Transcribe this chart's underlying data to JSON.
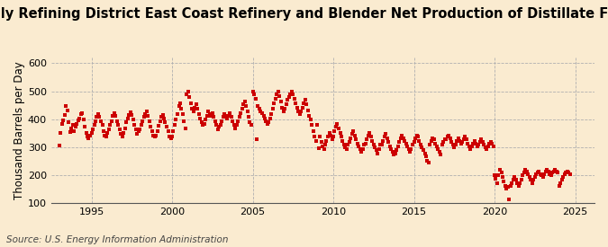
{
  "title": "Monthly Refining District East Coast Refinery and Blender Net Production of Distillate Fuel Oil",
  "ylabel": "Thousand Barrels per Day",
  "source": "Source: U.S. Energy Information Administration",
  "background_color": "#faebd0",
  "plot_bg_color": "#faebd0",
  "marker_color": "#cc0000",
  "xlim": [
    1992.5,
    2026.2
  ],
  "ylim": [
    100,
    620
  ],
  "yticks": [
    100,
    200,
    300,
    400,
    500,
    600
  ],
  "xticks": [
    1995,
    2000,
    2005,
    2010,
    2015,
    2020,
    2025
  ],
  "title_fontsize": 10.5,
  "ylabel_fontsize": 8.5,
  "source_fontsize": 7.5,
  "data": [
    [
      1993.0,
      305
    ],
    [
      1993.08,
      350
    ],
    [
      1993.17,
      382
    ],
    [
      1993.25,
      395
    ],
    [
      1993.33,
      415
    ],
    [
      1993.42,
      448
    ],
    [
      1993.5,
      432
    ],
    [
      1993.58,
      388
    ],
    [
      1993.67,
      355
    ],
    [
      1993.75,
      368
    ],
    [
      1993.83,
      378
    ],
    [
      1993.92,
      358
    ],
    [
      1994.0,
      372
    ],
    [
      1994.08,
      382
    ],
    [
      1994.17,
      396
    ],
    [
      1994.25,
      402
    ],
    [
      1994.33,
      418
    ],
    [
      1994.42,
      422
    ],
    [
      1994.5,
      398
    ],
    [
      1994.58,
      372
    ],
    [
      1994.67,
      352
    ],
    [
      1994.75,
      338
    ],
    [
      1994.83,
      332
    ],
    [
      1994.92,
      342
    ],
    [
      1995.0,
      352
    ],
    [
      1995.08,
      362
    ],
    [
      1995.17,
      378
    ],
    [
      1995.25,
      392
    ],
    [
      1995.33,
      408
    ],
    [
      1995.42,
      418
    ],
    [
      1995.5,
      408
    ],
    [
      1995.58,
      392
    ],
    [
      1995.67,
      378
    ],
    [
      1995.75,
      358
    ],
    [
      1995.83,
      342
    ],
    [
      1995.92,
      338
    ],
    [
      1996.0,
      352
    ],
    [
      1996.08,
      362
    ],
    [
      1996.17,
      378
    ],
    [
      1996.25,
      392
    ],
    [
      1996.33,
      412
    ],
    [
      1996.42,
      422
    ],
    [
      1996.5,
      412
    ],
    [
      1996.58,
      392
    ],
    [
      1996.67,
      378
    ],
    [
      1996.75,
      362
    ],
    [
      1996.83,
      348
    ],
    [
      1996.92,
      338
    ],
    [
      1997.0,
      352
    ],
    [
      1997.08,
      368
    ],
    [
      1997.17,
      388
    ],
    [
      1997.25,
      402
    ],
    [
      1997.33,
      415
    ],
    [
      1997.42,
      425
    ],
    [
      1997.5,
      415
    ],
    [
      1997.58,
      398
    ],
    [
      1997.67,
      378
    ],
    [
      1997.75,
      362
    ],
    [
      1997.83,
      348
    ],
    [
      1997.92,
      358
    ],
    [
      1998.0,
      362
    ],
    [
      1998.08,
      378
    ],
    [
      1998.17,
      392
    ],
    [
      1998.25,
      408
    ],
    [
      1998.33,
      418
    ],
    [
      1998.42,
      428
    ],
    [
      1998.5,
      412
    ],
    [
      1998.58,
      392
    ],
    [
      1998.67,
      372
    ],
    [
      1998.75,
      358
    ],
    [
      1998.83,
      342
    ],
    [
      1998.92,
      338
    ],
    [
      1999.0,
      342
    ],
    [
      1999.08,
      358
    ],
    [
      1999.17,
      375
    ],
    [
      1999.25,
      392
    ],
    [
      1999.33,
      408
    ],
    [
      1999.42,
      415
    ],
    [
      1999.5,
      402
    ],
    [
      1999.58,
      388
    ],
    [
      1999.67,
      372
    ],
    [
      1999.75,
      358
    ],
    [
      1999.83,
      338
    ],
    [
      1999.92,
      332
    ],
    [
      2000.0,
      338
    ],
    [
      2000.08,
      358
    ],
    [
      2000.17,
      378
    ],
    [
      2000.25,
      398
    ],
    [
      2000.33,
      418
    ],
    [
      2000.42,
      448
    ],
    [
      2000.5,
      458
    ],
    [
      2000.58,
      438
    ],
    [
      2000.67,
      418
    ],
    [
      2000.75,
      392
    ],
    [
      2000.83,
      368
    ],
    [
      2000.92,
      488
    ],
    [
      2001.0,
      498
    ],
    [
      2001.08,
      478
    ],
    [
      2001.17,
      458
    ],
    [
      2001.25,
      438
    ],
    [
      2001.33,
      428
    ],
    [
      2001.42,
      442
    ],
    [
      2001.5,
      452
    ],
    [
      2001.58,
      438
    ],
    [
      2001.67,
      418
    ],
    [
      2001.75,
      402
    ],
    [
      2001.83,
      388
    ],
    [
      2001.92,
      378
    ],
    [
      2002.0,
      382
    ],
    [
      2002.08,
      398
    ],
    [
      2002.17,
      412
    ],
    [
      2002.25,
      428
    ],
    [
      2002.33,
      418
    ],
    [
      2002.42,
      412
    ],
    [
      2002.5,
      422
    ],
    [
      2002.58,
      408
    ],
    [
      2002.67,
      392
    ],
    [
      2002.75,
      378
    ],
    [
      2002.83,
      362
    ],
    [
      2002.92,
      372
    ],
    [
      2003.0,
      378
    ],
    [
      2003.08,
      392
    ],
    [
      2003.17,
      408
    ],
    [
      2003.25,
      418
    ],
    [
      2003.33,
      412
    ],
    [
      2003.42,
      402
    ],
    [
      2003.5,
      412
    ],
    [
      2003.58,
      422
    ],
    [
      2003.67,
      408
    ],
    [
      2003.75,
      392
    ],
    [
      2003.83,
      378
    ],
    [
      2003.92,
      368
    ],
    [
      2004.0,
      378
    ],
    [
      2004.08,
      392
    ],
    [
      2004.17,
      408
    ],
    [
      2004.25,
      422
    ],
    [
      2004.33,
      438
    ],
    [
      2004.42,
      452
    ],
    [
      2004.5,
      462
    ],
    [
      2004.58,
      448
    ],
    [
      2004.67,
      428
    ],
    [
      2004.75,
      408
    ],
    [
      2004.83,
      388
    ],
    [
      2004.92,
      378
    ],
    [
      2005.0,
      498
    ],
    [
      2005.08,
      488
    ],
    [
      2005.17,
      472
    ],
    [
      2005.25,
      328
    ],
    [
      2005.33,
      448
    ],
    [
      2005.42,
      438
    ],
    [
      2005.5,
      428
    ],
    [
      2005.58,
      422
    ],
    [
      2005.67,
      412
    ],
    [
      2005.75,
      402
    ],
    [
      2005.83,
      392
    ],
    [
      2005.92,
      382
    ],
    [
      2006.0,
      388
    ],
    [
      2006.08,
      402
    ],
    [
      2006.17,
      418
    ],
    [
      2006.25,
      438
    ],
    [
      2006.33,
      458
    ],
    [
      2006.42,
      472
    ],
    [
      2006.5,
      488
    ],
    [
      2006.58,
      498
    ],
    [
      2006.67,
      482
    ],
    [
      2006.75,
      462
    ],
    [
      2006.83,
      442
    ],
    [
      2006.92,
      428
    ],
    [
      2007.0,
      438
    ],
    [
      2007.08,
      452
    ],
    [
      2007.17,
      468
    ],
    [
      2007.25,
      478
    ],
    [
      2007.33,
      488
    ],
    [
      2007.42,
      498
    ],
    [
      2007.5,
      488
    ],
    [
      2007.58,
      472
    ],
    [
      2007.67,
      458
    ],
    [
      2007.75,
      442
    ],
    [
      2007.83,
      428
    ],
    [
      2007.92,
      418
    ],
    [
      2008.0,
      428
    ],
    [
      2008.08,
      442
    ],
    [
      2008.17,
      458
    ],
    [
      2008.25,
      468
    ],
    [
      2008.33,
      452
    ],
    [
      2008.42,
      432
    ],
    [
      2008.5,
      412
    ],
    [
      2008.58,
      398
    ],
    [
      2008.67,
      378
    ],
    [
      2008.75,
      358
    ],
    [
      2008.83,
      338
    ],
    [
      2008.92,
      322
    ],
    [
      2009.0,
      378
    ],
    [
      2009.08,
      295
    ],
    [
      2009.17,
      338
    ],
    [
      2009.25,
      318
    ],
    [
      2009.33,
      302
    ],
    [
      2009.42,
      292
    ],
    [
      2009.5,
      308
    ],
    [
      2009.58,
      322
    ],
    [
      2009.67,
      338
    ],
    [
      2009.75,
      352
    ],
    [
      2009.83,
      342
    ],
    [
      2009.92,
      328
    ],
    [
      2010.0,
      338
    ],
    [
      2010.08,
      358
    ],
    [
      2010.17,
      372
    ],
    [
      2010.25,
      382
    ],
    [
      2010.33,
      368
    ],
    [
      2010.42,
      352
    ],
    [
      2010.5,
      338
    ],
    [
      2010.58,
      322
    ],
    [
      2010.67,
      308
    ],
    [
      2010.75,
      298
    ],
    [
      2010.83,
      292
    ],
    [
      2010.92,
      308
    ],
    [
      2011.0,
      318
    ],
    [
      2011.08,
      332
    ],
    [
      2011.17,
      348
    ],
    [
      2011.25,
      358
    ],
    [
      2011.33,
      342
    ],
    [
      2011.42,
      328
    ],
    [
      2011.5,
      312
    ],
    [
      2011.58,
      302
    ],
    [
      2011.67,
      292
    ],
    [
      2011.75,
      282
    ],
    [
      2011.83,
      292
    ],
    [
      2011.92,
      308
    ],
    [
      2012.0,
      312
    ],
    [
      2012.08,
      328
    ],
    [
      2012.17,
      342
    ],
    [
      2012.25,
      352
    ],
    [
      2012.33,
      338
    ],
    [
      2012.42,
      322
    ],
    [
      2012.5,
      308
    ],
    [
      2012.58,
      298
    ],
    [
      2012.67,
      288
    ],
    [
      2012.75,
      278
    ],
    [
      2012.83,
      292
    ],
    [
      2012.92,
      308
    ],
    [
      2013.0,
      308
    ],
    [
      2013.08,
      322
    ],
    [
      2013.17,
      338
    ],
    [
      2013.25,
      348
    ],
    [
      2013.33,
      332
    ],
    [
      2013.42,
      318
    ],
    [
      2013.5,
      302
    ],
    [
      2013.58,
      292
    ],
    [
      2013.67,
      282
    ],
    [
      2013.75,
      272
    ],
    [
      2013.83,
      278
    ],
    [
      2013.92,
      288
    ],
    [
      2014.0,
      302
    ],
    [
      2014.08,
      318
    ],
    [
      2014.17,
      332
    ],
    [
      2014.25,
      342
    ],
    [
      2014.33,
      332
    ],
    [
      2014.42,
      322
    ],
    [
      2014.5,
      312
    ],
    [
      2014.58,
      302
    ],
    [
      2014.67,
      292
    ],
    [
      2014.75,
      282
    ],
    [
      2014.83,
      292
    ],
    [
      2014.92,
      308
    ],
    [
      2015.0,
      318
    ],
    [
      2015.08,
      332
    ],
    [
      2015.17,
      342
    ],
    [
      2015.25,
      338
    ],
    [
      2015.33,
      322
    ],
    [
      2015.42,
      308
    ],
    [
      2015.5,
      298
    ],
    [
      2015.58,
      288
    ],
    [
      2015.67,
      278
    ],
    [
      2015.75,
      268
    ],
    [
      2015.83,
      252
    ],
    [
      2015.92,
      245
    ],
    [
      2016.0,
      308
    ],
    [
      2016.08,
      322
    ],
    [
      2016.17,
      332
    ],
    [
      2016.25,
      328
    ],
    [
      2016.33,
      312
    ],
    [
      2016.42,
      302
    ],
    [
      2016.5,
      292
    ],
    [
      2016.58,
      282
    ],
    [
      2016.67,
      272
    ],
    [
      2016.75,
      308
    ],
    [
      2016.83,
      318
    ],
    [
      2016.92,
      328
    ],
    [
      2017.0,
      328
    ],
    [
      2017.08,
      338
    ],
    [
      2017.17,
      342
    ],
    [
      2017.25,
      332
    ],
    [
      2017.33,
      318
    ],
    [
      2017.42,
      308
    ],
    [
      2017.5,
      298
    ],
    [
      2017.58,
      308
    ],
    [
      2017.67,
      322
    ],
    [
      2017.75,
      332
    ],
    [
      2017.83,
      322
    ],
    [
      2017.92,
      312
    ],
    [
      2018.0,
      318
    ],
    [
      2018.08,
      328
    ],
    [
      2018.17,
      338
    ],
    [
      2018.25,
      328
    ],
    [
      2018.33,
      312
    ],
    [
      2018.42,
      302
    ],
    [
      2018.5,
      292
    ],
    [
      2018.58,
      302
    ],
    [
      2018.67,
      312
    ],
    [
      2018.75,
      322
    ],
    [
      2018.83,
      312
    ],
    [
      2018.92,
      302
    ],
    [
      2019.0,
      308
    ],
    [
      2019.08,
      318
    ],
    [
      2019.17,
      328
    ],
    [
      2019.25,
      318
    ],
    [
      2019.33,
      308
    ],
    [
      2019.42,
      298
    ],
    [
      2019.5,
      292
    ],
    [
      2019.58,
      302
    ],
    [
      2019.67,
      312
    ],
    [
      2019.75,
      318
    ],
    [
      2019.83,
      312
    ],
    [
      2019.92,
      302
    ],
    [
      2020.0,
      198
    ],
    [
      2020.08,
      188
    ],
    [
      2020.17,
      172
    ],
    [
      2020.25,
      198
    ],
    [
      2020.33,
      218
    ],
    [
      2020.42,
      208
    ],
    [
      2020.5,
      192
    ],
    [
      2020.58,
      178
    ],
    [
      2020.67,
      162
    ],
    [
      2020.75,
      152
    ],
    [
      2020.83,
      158
    ],
    [
      2020.92,
      112
    ],
    [
      2021.0,
      162
    ],
    [
      2021.08,
      172
    ],
    [
      2021.17,
      182
    ],
    [
      2021.25,
      192
    ],
    [
      2021.33,
      182
    ],
    [
      2021.42,
      172
    ],
    [
      2021.5,
      162
    ],
    [
      2021.58,
      172
    ],
    [
      2021.67,
      182
    ],
    [
      2021.75,
      198
    ],
    [
      2021.83,
      208
    ],
    [
      2021.92,
      218
    ],
    [
      2022.0,
      212
    ],
    [
      2022.08,
      202
    ],
    [
      2022.17,
      192
    ],
    [
      2022.25,
      182
    ],
    [
      2022.33,
      172
    ],
    [
      2022.42,
      182
    ],
    [
      2022.5,
      192
    ],
    [
      2022.58,
      202
    ],
    [
      2022.67,
      208
    ],
    [
      2022.75,
      212
    ],
    [
      2022.83,
      202
    ],
    [
      2022.92,
      198
    ],
    [
      2023.0,
      192
    ],
    [
      2023.08,
      202
    ],
    [
      2023.17,
      212
    ],
    [
      2023.25,
      218
    ],
    [
      2023.33,
      212
    ],
    [
      2023.42,
      202
    ],
    [
      2023.5,
      198
    ],
    [
      2023.58,
      208
    ],
    [
      2023.67,
      212
    ],
    [
      2023.75,
      218
    ],
    [
      2023.83,
      212
    ],
    [
      2023.92,
      208
    ],
    [
      2024.0,
      162
    ],
    [
      2024.08,
      172
    ],
    [
      2024.17,
      182
    ],
    [
      2024.25,
      192
    ],
    [
      2024.33,
      202
    ],
    [
      2024.42,
      208
    ],
    [
      2024.5,
      212
    ],
    [
      2024.58,
      208
    ],
    [
      2024.67,
      202
    ]
  ]
}
